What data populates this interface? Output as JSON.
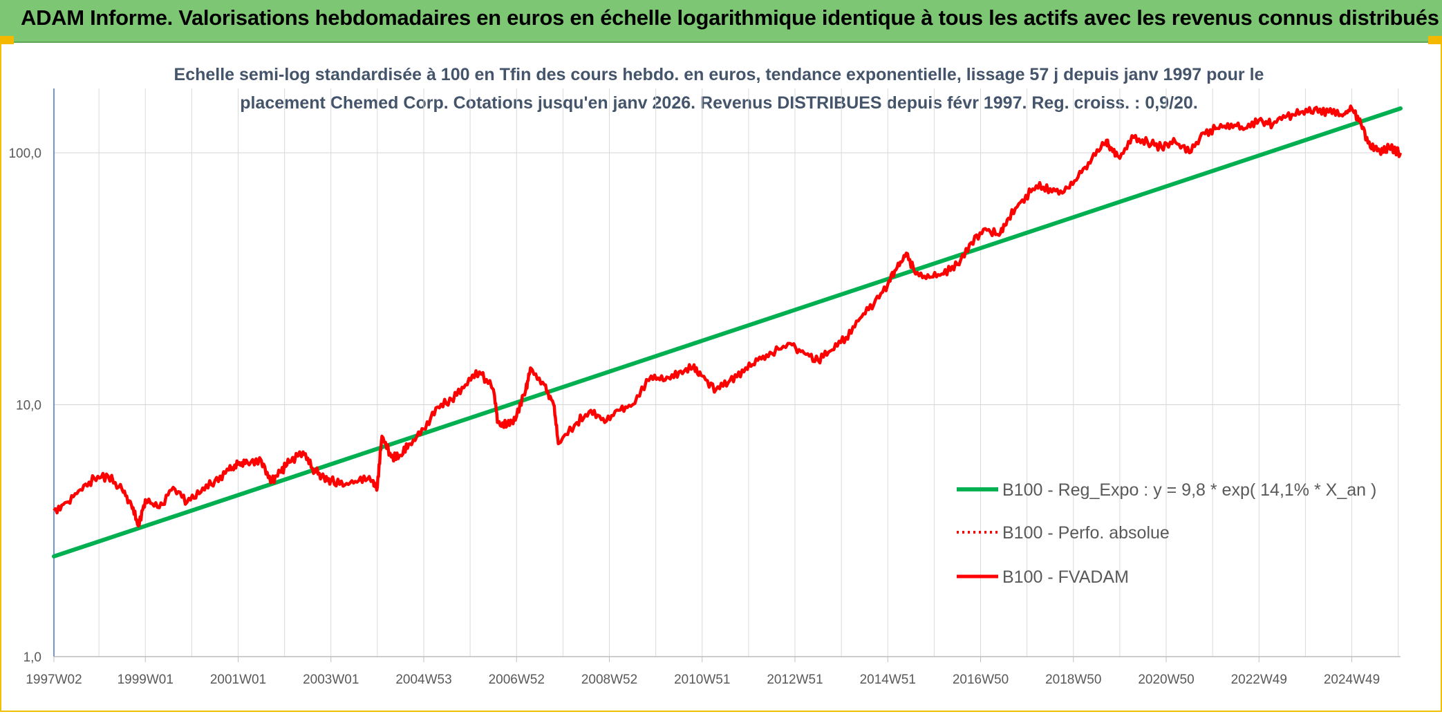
{
  "header": {
    "title": "ADAM Informe. Valorisations hebdomadaires en euros en échelle logarithmique identique à tous les actifs avec les revenus connus distribués"
  },
  "colors": {
    "header_bg": "#7dc673",
    "regression": "#00b050",
    "fvadam": "#ff0000",
    "perfo": "#ff0000",
    "grid": "#d9d9d9"
  },
  "chart_data": {
    "type": "line",
    "subtitle_line1": "Echelle semi-log standardisée à 100 en Tfin des cours hebdo. en euros, tendance exponentielle, lissage 57 j depuis janv 1997 pour le",
    "subtitle_line2": "placement Chemed Corp. Cotations jusqu'en janv 2026. Revenus DISTRIBUES depuis févr 1997. Reg. croiss. : 0,9/20.",
    "y_scale": "log",
    "ylim": [
      1,
      180
    ],
    "y_ticks": [
      {
        "value": 1,
        "label": "1,0"
      },
      {
        "value": 10,
        "label": "10,0"
      },
      {
        "value": 100,
        "label": "100,0"
      }
    ],
    "xlim": [
      1997.03,
      2026.05
    ],
    "x_ticks": [
      {
        "value": 1997.03,
        "label": "1997W02"
      },
      {
        "value": 1999.0,
        "label": "1999W01"
      },
      {
        "value": 2001.0,
        "label": "2001W01"
      },
      {
        "value": 2003.0,
        "label": "2003W01"
      },
      {
        "value": 2005.0,
        "label": "2004W53"
      },
      {
        "value": 2007.0,
        "label": "2006W52"
      },
      {
        "value": 2009.0,
        "label": "2008W52"
      },
      {
        "value": 2011.0,
        "label": "2010W51"
      },
      {
        "value": 2013.0,
        "label": "2012W51"
      },
      {
        "value": 2015.0,
        "label": "2014W51"
      },
      {
        "value": 2017.0,
        "label": "2016W50"
      },
      {
        "value": 2019.0,
        "label": "2018W50"
      },
      {
        "value": 2021.0,
        "label": "2020W50"
      },
      {
        "value": 2023.0,
        "label": "2022W49"
      },
      {
        "value": 2025.0,
        "label": "2024W49"
      }
    ],
    "grid": true,
    "legend_position": "lower-right",
    "series": [
      {
        "name": "B100 - Reg_Expo : y = 9,8 * exp( 14,1% *  X_an )",
        "style": "solid-thick",
        "color": "#00b050",
        "x": [
          1997.03,
          2026.05
        ],
        "y": [
          2.5,
          150
        ]
      },
      {
        "name": "B100 - Perfo. absolue",
        "style": "dotted",
        "color": "#ff0000",
        "x": [],
        "y": []
      },
      {
        "name": "B100 - FVADAM",
        "style": "solid",
        "color": "#ff0000",
        "x": [
          1997.03,
          1997.3,
          1997.6,
          1997.9,
          1998.2,
          1998.5,
          1998.7,
          1998.85,
          1999.0,
          1999.3,
          1999.6,
          1999.9,
          2000.2,
          2000.5,
          2000.8,
          2001.0,
          2001.2,
          2001.5,
          2001.7,
          2001.9,
          2002.1,
          2002.4,
          2002.6,
          2002.8,
          2003.0,
          2003.3,
          2003.6,
          2003.9,
          2004.0,
          2004.1,
          2004.3,
          2004.5,
          2004.7,
          2005.0,
          2005.3,
          2005.6,
          2005.9,
          2006.2,
          2006.5,
          2006.6,
          2006.8,
          2007.0,
          2007.2,
          2007.3,
          2007.6,
          2007.8,
          2007.9,
          2008.3,
          2008.6,
          2008.9,
          2009.2,
          2009.5,
          2009.9,
          2010.2,
          2010.5,
          2010.8,
          2011.0,
          2011.3,
          2011.6,
          2011.9,
          2012.2,
          2012.5,
          2012.9,
          2013.2,
          2013.5,
          2013.8,
          2014.1,
          2014.4,
          2014.7,
          2015.0,
          2015.2,
          2015.4,
          2015.6,
          2015.9,
          2016.2,
          2016.5,
          2016.8,
          2017.1,
          2017.4,
          2017.6,
          2017.9,
          2018.2,
          2018.5,
          2018.8,
          2019.1,
          2019.4,
          2019.7,
          2019.8,
          2020.0,
          2020.3,
          2020.6,
          2020.9,
          2021.2,
          2021.5,
          2021.8,
          2022.1,
          2022.4,
          2022.7,
          2023.0,
          2023.3,
          2023.6,
          2023.9,
          2024.2,
          2024.5,
          2024.8,
          2025.0,
          2025.2,
          2025.4,
          2025.6,
          2025.8,
          2026.05
        ],
        "y": [
          3.8,
          4.1,
          4.6,
          5.1,
          5.2,
          4.6,
          4.0,
          3.3,
          4.2,
          3.9,
          4.7,
          4.1,
          4.5,
          5.0,
          5.5,
          5.8,
          5.9,
          6.0,
          4.9,
          5.4,
          5.9,
          6.5,
          5.6,
          5.2,
          5.0,
          4.8,
          5.0,
          5.0,
          4.7,
          7.5,
          6.2,
          6.3,
          7.0,
          8.0,
          9.8,
          10.5,
          12.0,
          13.5,
          11.5,
          8.5,
          8.3,
          9.0,
          11.5,
          14.0,
          12.0,
          10.0,
          7.0,
          8.5,
          9.5,
          8.5,
          9.5,
          10.0,
          13.0,
          12.5,
          13.5,
          14.0,
          13.0,
          11.5,
          12.5,
          13.5,
          15.0,
          16.0,
          17.5,
          16.0,
          15.0,
          16.5,
          18.5,
          22.0,
          25.0,
          30.0,
          35.0,
          40.0,
          33.0,
          32.0,
          33.0,
          36.0,
          44.0,
          50.0,
          47.0,
          55.0,
          65.0,
          74.0,
          72.0,
          70.0,
          80.0,
          95.0,
          110.0,
          105.0,
          95.0,
          115.0,
          110.0,
          105.0,
          110.0,
          100.0,
          120.0,
          125.0,
          130.0,
          125.0,
          135.0,
          130.0,
          140.0,
          145.0,
          150.0,
          145.0,
          140.0,
          150.0,
          130.0,
          105.0,
          102.0,
          105.0,
          100.0
        ]
      }
    ]
  }
}
